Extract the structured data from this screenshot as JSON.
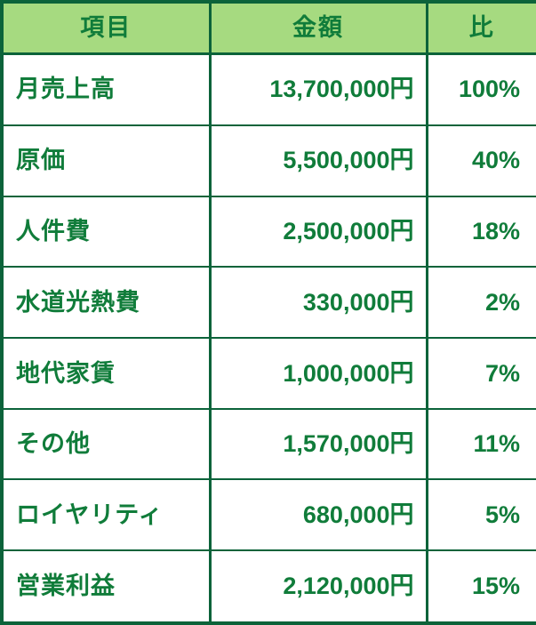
{
  "colors": {
    "header_bg": "#a6da80",
    "text": "#107c3a",
    "border": "#0c633a",
    "row_bg": "#ffffff"
  },
  "chart_data": {
    "type": "table",
    "columns": [
      "項目",
      "金額",
      "比"
    ],
    "rows": [
      {
        "item": "月売上高",
        "amount": "13,700,000円",
        "ratio": "100%"
      },
      {
        "item": "原価",
        "amount": "5,500,000円",
        "ratio": "40%"
      },
      {
        "item": "人件費",
        "amount": "2,500,000円",
        "ratio": "18%"
      },
      {
        "item": "水道光熱費",
        "amount": "330,000円",
        "ratio": "2%"
      },
      {
        "item": "地代家賃",
        "amount": "1,000,000円",
        "ratio": "7%"
      },
      {
        "item": "その他",
        "amount": "1,570,000円",
        "ratio": "11%"
      },
      {
        "item": "ロイヤリティ",
        "amount": "680,000円",
        "ratio": "5%"
      },
      {
        "item": "営業利益",
        "amount": "2,120,000円",
        "ratio": "15%"
      }
    ],
    "amounts_yen": [
      13700000,
      5500000,
      2500000,
      330000,
      1000000,
      1570000,
      680000,
      2120000
    ],
    "ratios_percent": [
      100,
      40,
      18,
      2,
      7,
      11,
      5,
      15
    ]
  }
}
